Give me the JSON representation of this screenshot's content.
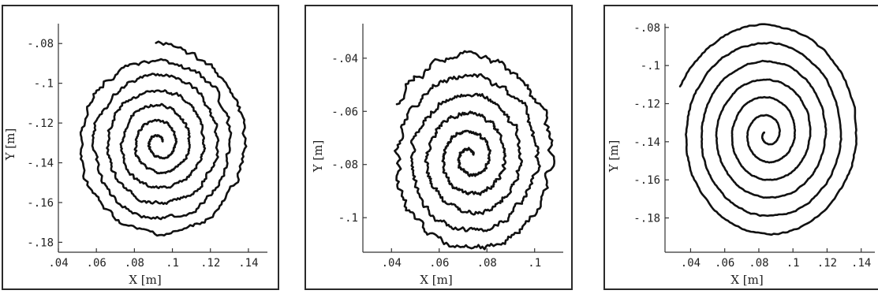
{
  "chart_data": [
    {
      "type": "line",
      "xlabel": "X [m]",
      "ylabel": "Y [m]",
      "xlim": [
        0.04,
        0.15
      ],
      "ylim": [
        -0.185,
        -0.07
      ],
      "x_ticks": [
        ".04",
        ".06",
        ".08",
        ".1",
        ".12",
        ".14"
      ],
      "y_ticks": [
        "-.08",
        "-.1",
        "-.12",
        "-.14",
        "-.16",
        "-.18"
      ],
      "x_tick_values": [
        0.04,
        0.06,
        0.08,
        0.1,
        0.12,
        0.14
      ],
      "y_tick_values": [
        -0.08,
        -0.1,
        -0.12,
        -0.14,
        -0.16,
        -0.18
      ],
      "spiral": {
        "center": [
          0.093,
          -0.13
        ],
        "end_radius": 0.047,
        "turns": 6.2,
        "start_angle_deg": 20,
        "roughness": 0.0015
      },
      "series": [
        {
          "values": []
        }
      ],
      "grid": false
    },
    {
      "type": "line",
      "xlabel": "X [m]",
      "ylabel": "Y [m]",
      "xlim": [
        0.028,
        0.112
      ],
      "ylim": [
        -0.113,
        -0.027
      ],
      "x_ticks": [
        ".04",
        ".06",
        ".08",
        ".1"
      ],
      "y_ticks": [
        "-.04",
        "-.06",
        "-.08",
        "-.1"
      ],
      "x_tick_values": [
        0.04,
        0.06,
        0.08,
        0.1
      ],
      "y_tick_values": [
        -0.04,
        -0.06,
        -0.08,
        -0.1
      ],
      "spiral": {
        "center": [
          0.073,
          -0.0775
        ],
        "end_radius": 0.037,
        "turns": 5.3,
        "start_angle_deg": 40,
        "roughness": 0.0016
      },
      "series": [
        {
          "values": []
        }
      ],
      "grid": false
    },
    {
      "type": "line",
      "xlabel": "X [m]",
      "ylabel": "Y [m]",
      "xlim": [
        0.025,
        0.148
      ],
      "ylim": [
        -0.198,
        -0.078
      ],
      "x_ticks": [
        ".04",
        ".06",
        ".08",
        ".1",
        ".12",
        ".14"
      ],
      "y_ticks": [
        "-.08",
        "-.1",
        "-.12",
        "-.14",
        "-.16",
        "-.18"
      ],
      "x_tick_values": [
        0.04,
        0.06,
        0.08,
        0.1,
        0.12,
        0.14
      ],
      "y_tick_values": [
        -0.08,
        -0.1,
        -0.12,
        -0.14,
        -0.16,
        -0.18
      ],
      "spiral": {
        "center": [
          0.085,
          -0.136
        ],
        "end_radius": 0.056,
        "turns": 6.0,
        "start_angle_deg": 155,
        "roughness": 0.0005
      },
      "series": [
        {
          "values": []
        }
      ],
      "grid": false
    }
  ]
}
